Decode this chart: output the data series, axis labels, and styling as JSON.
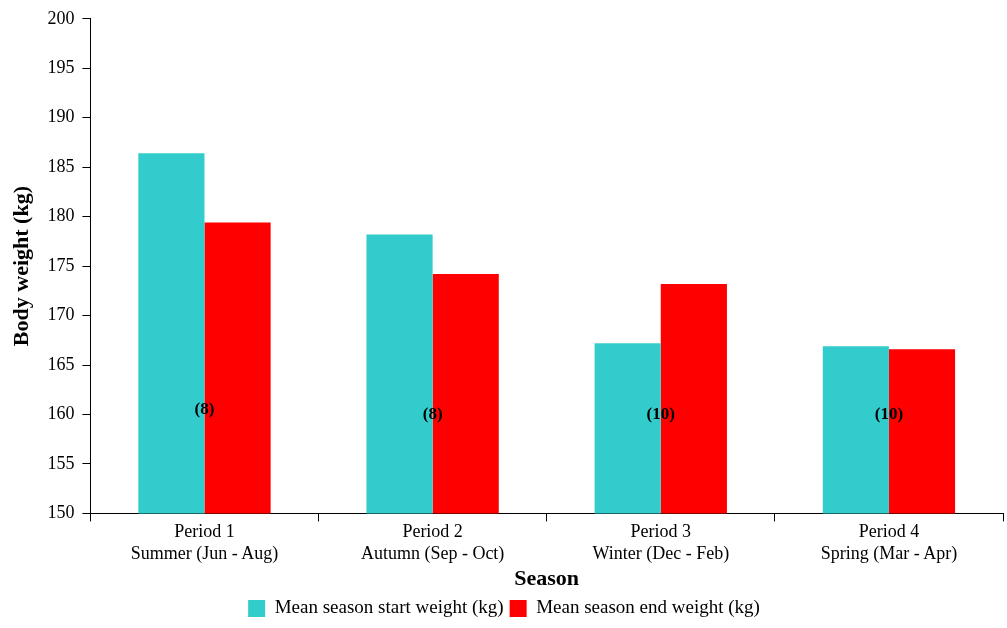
{
  "chart_data": {
    "type": "bar",
    "xlabel": "Season",
    "ylabel": "Body weight (kg)",
    "categories": [
      "Period 1\nSummer (Jun - Aug)",
      "Period 2\nAutumn (Sep - Oct)",
      "Period 3\nWinter (Dec - Feb)",
      "Period 4\nSpring (Mar - Apr)"
    ],
    "series": [
      {
        "name": "Mean season start weight (kg)",
        "color": "#33cccc",
        "values": [
          186.4,
          178.2,
          167.2,
          166.9
        ]
      },
      {
        "name": "Mean season end weight (kg)",
        "color": "#ff0000",
        "values": [
          179.4,
          174.2,
          173.2,
          166.6
        ]
      }
    ],
    "ylim": [
      150,
      200
    ],
    "yticks": [
      150,
      155,
      160,
      165,
      170,
      175,
      180,
      185,
      190,
      195,
      200
    ],
    "grid": false,
    "legend": "bottom",
    "annotations": [
      {
        "text": "(8)",
        "x": "Period 1\nSummer (Jun - Aug)",
        "y": 160.5
      },
      {
        "text": "(8)",
        "x": "Period 2\nAutumn (Sep - Oct)",
        "y": 160
      },
      {
        "text": "(10)",
        "x": "Period 3\nWinter (Dec - Feb)",
        "y": 160
      },
      {
        "text": "(10)",
        "x": "Period 4\nSpring (Mar - Apr)",
        "y": 160
      }
    ]
  }
}
